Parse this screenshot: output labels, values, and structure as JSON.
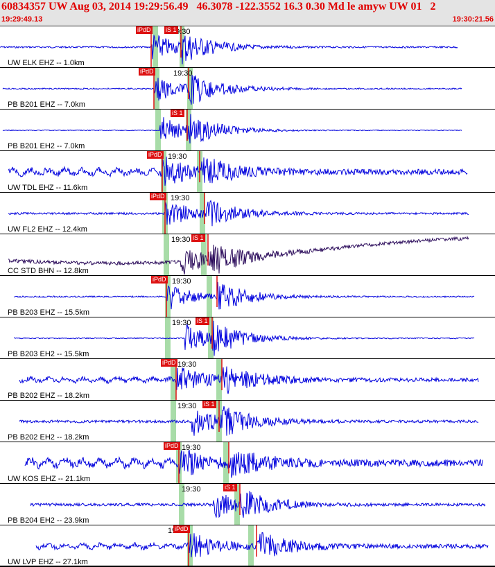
{
  "header": {
    "title": "60834357 UW Aug 03, 2014 19:29:56.49   46.3078 -122.3552 16.3 0.30 Md le amyw UW 01   2",
    "start_time": "19:29:49.13",
    "end_time": "19:30:21.56"
  },
  "colors": {
    "trace": "#0000dd",
    "pick": "#dd1111",
    "window": "#a8dca8",
    "header_text": "#e00000"
  },
  "traces": [
    {
      "station": "UW ELK EHZ -- 1.0km",
      "time": "19:30",
      "p_label": "iPdD",
      "s_label": "iS 1",
      "color": "#0000dd"
    },
    {
      "station": "PB B201 EHZ -- 7.0km",
      "time": "19:30",
      "p_label": "iPdD",
      "s_label": "",
      "color": "#0000dd"
    },
    {
      "station": "PB B201 EH2 -- 7.0km",
      "time": "",
      "p_label": "",
      "s_label": "iS 1",
      "color": "#0000dd"
    },
    {
      "station": "UW TDL EHZ -- 11.6km",
      "time": "19:30",
      "p_label": "iPdD",
      "s_label": "",
      "color": "#0000dd"
    },
    {
      "station": "UW FL2 EHZ -- 12.4km",
      "time": "19:30",
      "p_label": "iPdD",
      "s_label": "",
      "color": "#0000dd"
    },
    {
      "station": "CC STD BHN -- 12.8km",
      "time": "19:30",
      "p_label": "",
      "s_label": "iS 1",
      "color": "#2a0a5a"
    },
    {
      "station": "PB B203 EHZ -- 15.5km",
      "time": "19:30",
      "p_label": "iPdD",
      "s_label": "",
      "color": "#0000dd"
    },
    {
      "station": "PB B203 EH2 -- 15.5km",
      "time": "19:30",
      "p_label": "",
      "s_label": "iS 1",
      "color": "#0000dd"
    },
    {
      "station": "PB B202 EHZ -- 18.2km",
      "time": "19:30",
      "p_label": "iPdD",
      "s_label": "",
      "color": "#0000dd"
    },
    {
      "station": "PB B202 EH2 -- 18.2km",
      "time": "19:30",
      "p_label": "",
      "s_label": "iS 1",
      "color": "#0000dd"
    },
    {
      "station": "UW KOS EHZ -- 21.1km",
      "time": "19:30",
      "p_label": "iPdD",
      "s_label": "",
      "color": "#0000dd"
    },
    {
      "station": "PB B204 EH2 -- 23.9km",
      "time": "19:30",
      "p_label": "",
      "s_label": "iS 1",
      "color": "#0000dd"
    },
    {
      "station": "UW LVP EHZ -- 27.1km",
      "time": "19:30",
      "p_label": "iPdD",
      "s_label": "",
      "color": "#0000dd"
    }
  ]
}
